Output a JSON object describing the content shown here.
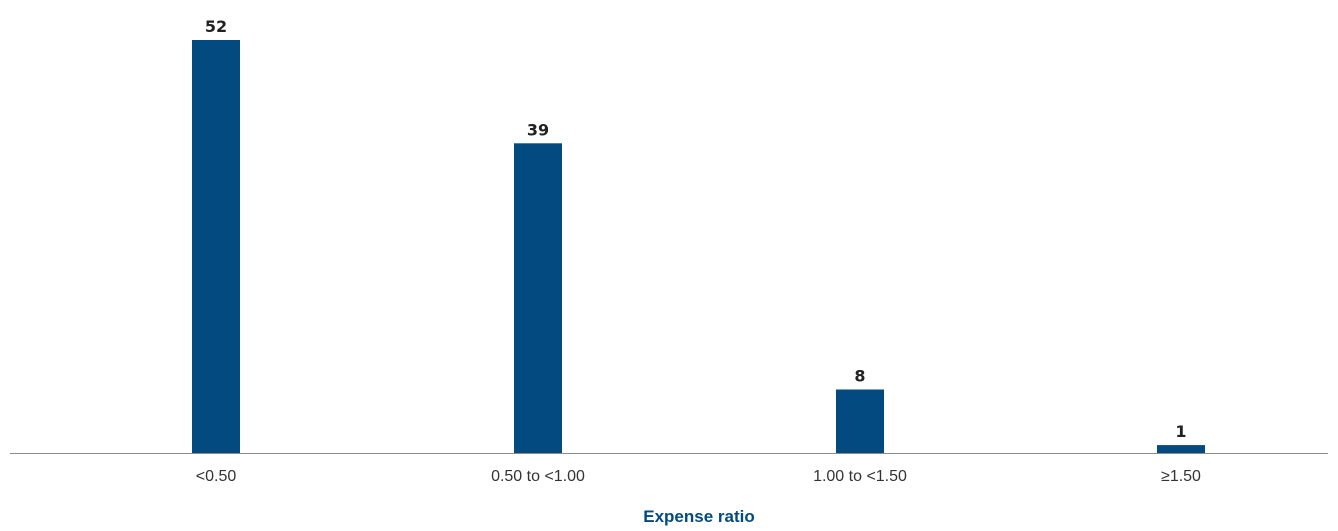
{
  "chart_data": {
    "type": "bar",
    "categories": [
      "<0.50",
      "0.50 to <1.00",
      "1.00 to <1.50",
      "≥1.50"
    ],
    "values": [
      52,
      39,
      8,
      1
    ],
    "data_labels": [
      "52",
      "39",
      "8",
      "1"
    ],
    "title": "",
    "xlabel": "Expense ratio",
    "ylabel": "",
    "ylim": [
      0,
      52
    ],
    "grid": false,
    "legend": "none",
    "colors": {
      "bar": "#024a7f",
      "data_label": "#222222",
      "tick_label": "#333333",
      "axis_line": "#8c8c8c",
      "axis_title": "#024a7f"
    }
  }
}
